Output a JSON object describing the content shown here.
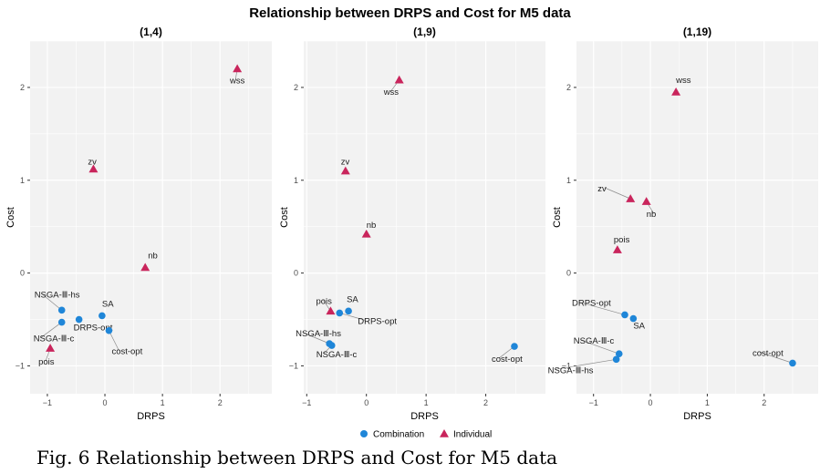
{
  "figure": {
    "title": "Relationship between DRPS and Cost for M5 data",
    "caption": "Fig. 6 Relationship between DRPS and Cost for M5 data"
  },
  "colors": {
    "combination": "#1f86d8",
    "individual": "#c9255c",
    "panel_bg": "#f2f2f2",
    "grid": "#ffffff"
  },
  "legend": {
    "position": "bottom",
    "items": [
      {
        "label": "Combination",
        "shape": "circle",
        "color": "#1f86d8"
      },
      {
        "label": "Individual",
        "shape": "triangle",
        "color": "#c9255c"
      }
    ]
  },
  "chart_data": [
    {
      "type": "scatter",
      "title": "(1,4)",
      "xlabel": "DRPS",
      "ylabel": "Cost",
      "xlim": [
        -1.3,
        2.9
      ],
      "ylim": [
        -1.3,
        2.5
      ],
      "xticks": [
        -1,
        0,
        1,
        2
      ],
      "yticks": [
        -1,
        0,
        1,
        2
      ],
      "grid": true,
      "points": [
        {
          "label": "wss",
          "x": 2.3,
          "y": 2.2,
          "group": "Individual"
        },
        {
          "label": "zv",
          "x": -0.2,
          "y": 1.12,
          "group": "Individual"
        },
        {
          "label": "nb",
          "x": 0.7,
          "y": 0.06,
          "group": "Individual"
        },
        {
          "label": "pois",
          "x": -0.95,
          "y": -0.81,
          "group": "Individual"
        },
        {
          "label": "NSGA-Ⅲ-hs",
          "x": -0.75,
          "y": -0.4,
          "group": "Combination"
        },
        {
          "label": "NSGA-Ⅲ-c",
          "x": -0.75,
          "y": -0.53,
          "group": "Combination"
        },
        {
          "label": "SA",
          "x": -0.05,
          "y": -0.46,
          "group": "Combination"
        },
        {
          "label": "DRPS-opt",
          "x": -0.45,
          "y": -0.5,
          "group": "Combination"
        },
        {
          "label": "cost-opt",
          "x": 0.07,
          "y": -0.62,
          "group": "Combination"
        }
      ]
    },
    {
      "type": "scatter",
      "title": "(1,9)",
      "xlabel": "DRPS",
      "ylabel": "Cost",
      "xlim": [
        -1.05,
        3.0
      ],
      "ylim": [
        -1.3,
        2.5
      ],
      "xticks": [
        -1,
        0,
        1,
        2
      ],
      "yticks": [
        -1,
        0,
        1,
        2
      ],
      "grid": true,
      "points": [
        {
          "label": "wss",
          "x": 0.55,
          "y": 2.08,
          "group": "Individual"
        },
        {
          "label": "zv",
          "x": -0.35,
          "y": 1.1,
          "group": "Individual"
        },
        {
          "label": "nb",
          "x": 0.0,
          "y": 0.42,
          "group": "Individual"
        },
        {
          "label": "pois",
          "x": -0.6,
          "y": -0.41,
          "group": "Individual"
        },
        {
          "label": "SA",
          "x": -0.3,
          "y": -0.41,
          "group": "Combination"
        },
        {
          "label": "DRPS-opt",
          "x": -0.45,
          "y": -0.43,
          "group": "Combination"
        },
        {
          "label": "NSGA-Ⅲ-hs",
          "x": -0.62,
          "y": -0.76,
          "group": "Combination"
        },
        {
          "label": "NSGA-Ⅲ-c",
          "x": -0.58,
          "y": -0.78,
          "group": "Combination"
        },
        {
          "label": "cost-opt",
          "x": 2.48,
          "y": -0.79,
          "group": "Combination"
        }
      ]
    },
    {
      "type": "scatter",
      "title": "(1,19)",
      "xlabel": "DRPS",
      "ylabel": "Cost",
      "xlim": [
        -1.3,
        2.95
      ],
      "ylim": [
        -1.3,
        2.5
      ],
      "xticks": [
        -1,
        0,
        1,
        2
      ],
      "yticks": [
        -1,
        0,
        1,
        2
      ],
      "grid": true,
      "points": [
        {
          "label": "wss",
          "x": 0.45,
          "y": 1.95,
          "group": "Individual"
        },
        {
          "label": "zv",
          "x": -0.35,
          "y": 0.8,
          "group": "Individual"
        },
        {
          "label": "nb",
          "x": -0.07,
          "y": 0.77,
          "group": "Individual"
        },
        {
          "label": "pois",
          "x": -0.58,
          "y": 0.25,
          "group": "Individual"
        },
        {
          "label": "DRPS-opt",
          "x": -0.45,
          "y": -0.45,
          "group": "Combination"
        },
        {
          "label": "SA",
          "x": -0.3,
          "y": -0.49,
          "group": "Combination"
        },
        {
          "label": "NSGA-Ⅲ-c",
          "x": -0.55,
          "y": -0.87,
          "group": "Combination"
        },
        {
          "label": "NSGA-Ⅲ-hs",
          "x": -0.6,
          "y": -0.93,
          "group": "Combination"
        },
        {
          "label": "cost-opt",
          "x": 2.5,
          "y": -0.97,
          "group": "Combination"
        }
      ]
    }
  ]
}
